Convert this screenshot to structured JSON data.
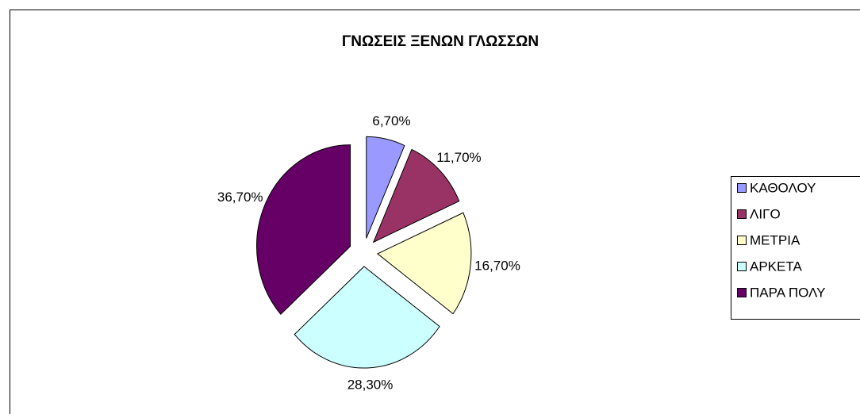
{
  "chart_data": {
    "type": "pie",
    "title": "ΓΝΩΣΕΙΣ ΞΕΝΩΝ ΓΛΩΣΣΩΝ",
    "categories": [
      "ΚΑΘΟΛΟΥ",
      "ΛΙΓΟ",
      "ΜΕΤΡΙΑ",
      "ΑΡΚΕΤΑ",
      "ΠΑΡΑ ΠΟΛΥ"
    ],
    "values": [
      6.7,
      11.7,
      16.7,
      28.3,
      36.7
    ],
    "value_labels": [
      "6,70%",
      "11,70%",
      "16,70%",
      "28,30%",
      "36,70%"
    ],
    "colors": [
      "#9999ff",
      "#993366",
      "#ffffcc",
      "#ccffff",
      "#660066"
    ],
    "legend": "right"
  }
}
